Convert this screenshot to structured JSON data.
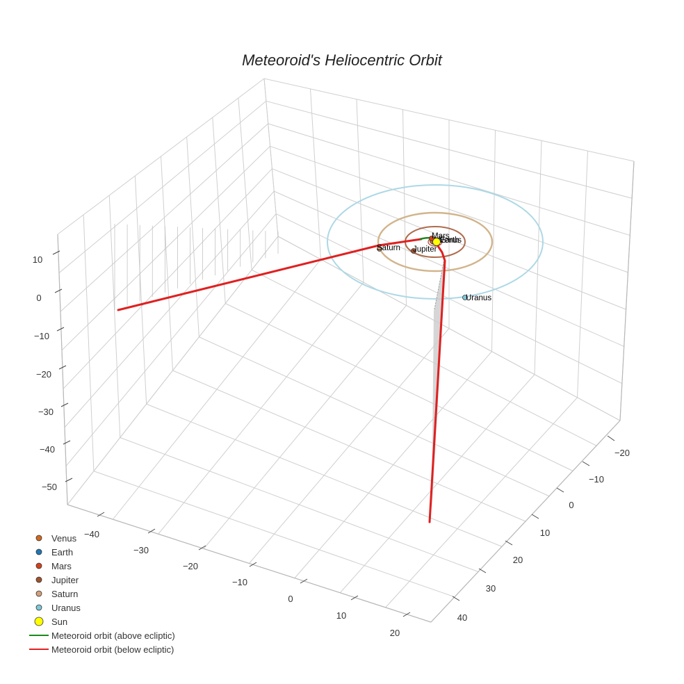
{
  "chart_data": {
    "type": "scatter3d",
    "title": "Meteoroid's Heliocentric Orbit",
    "axes": {
      "x": {
        "ticks": [
          "−40",
          "−30",
          "−20",
          "−10",
          "0",
          "10",
          "20"
        ],
        "label": ""
      },
      "y": {
        "ticks": [
          "−20",
          "−10",
          "0",
          "10",
          "20",
          "30",
          "40"
        ],
        "label": ""
      },
      "z": {
        "ticks": [
          "10",
          "0",
          "−10",
          "−20",
          "−30",
          "−40",
          "−50"
        ],
        "label": ""
      }
    },
    "planets": [
      {
        "name": "Venus",
        "color": "#d2691e",
        "label": "Venus"
      },
      {
        "name": "Earth",
        "color": "#1f77b4",
        "label": "Earth"
      },
      {
        "name": "Mars",
        "color": "#d2431c",
        "label": "Mars"
      },
      {
        "name": "Jupiter",
        "color": "#a0522d",
        "label": "Jupiter"
      },
      {
        "name": "Saturn",
        "color": "#d2a07a",
        "label": "Saturn"
      },
      {
        "name": "Uranus",
        "color": "#7ec8d8",
        "label": "Uranus"
      }
    ],
    "sun": {
      "name": "Sun",
      "color": "#ffff00"
    },
    "series": [
      {
        "name": "Meteoroid orbit (above ecliptic)",
        "color": "#1a8a1a"
      },
      {
        "name": "Meteoroid orbit (below ecliptic)",
        "color": "#e02020"
      }
    ],
    "legend_position": "bottom-left"
  }
}
